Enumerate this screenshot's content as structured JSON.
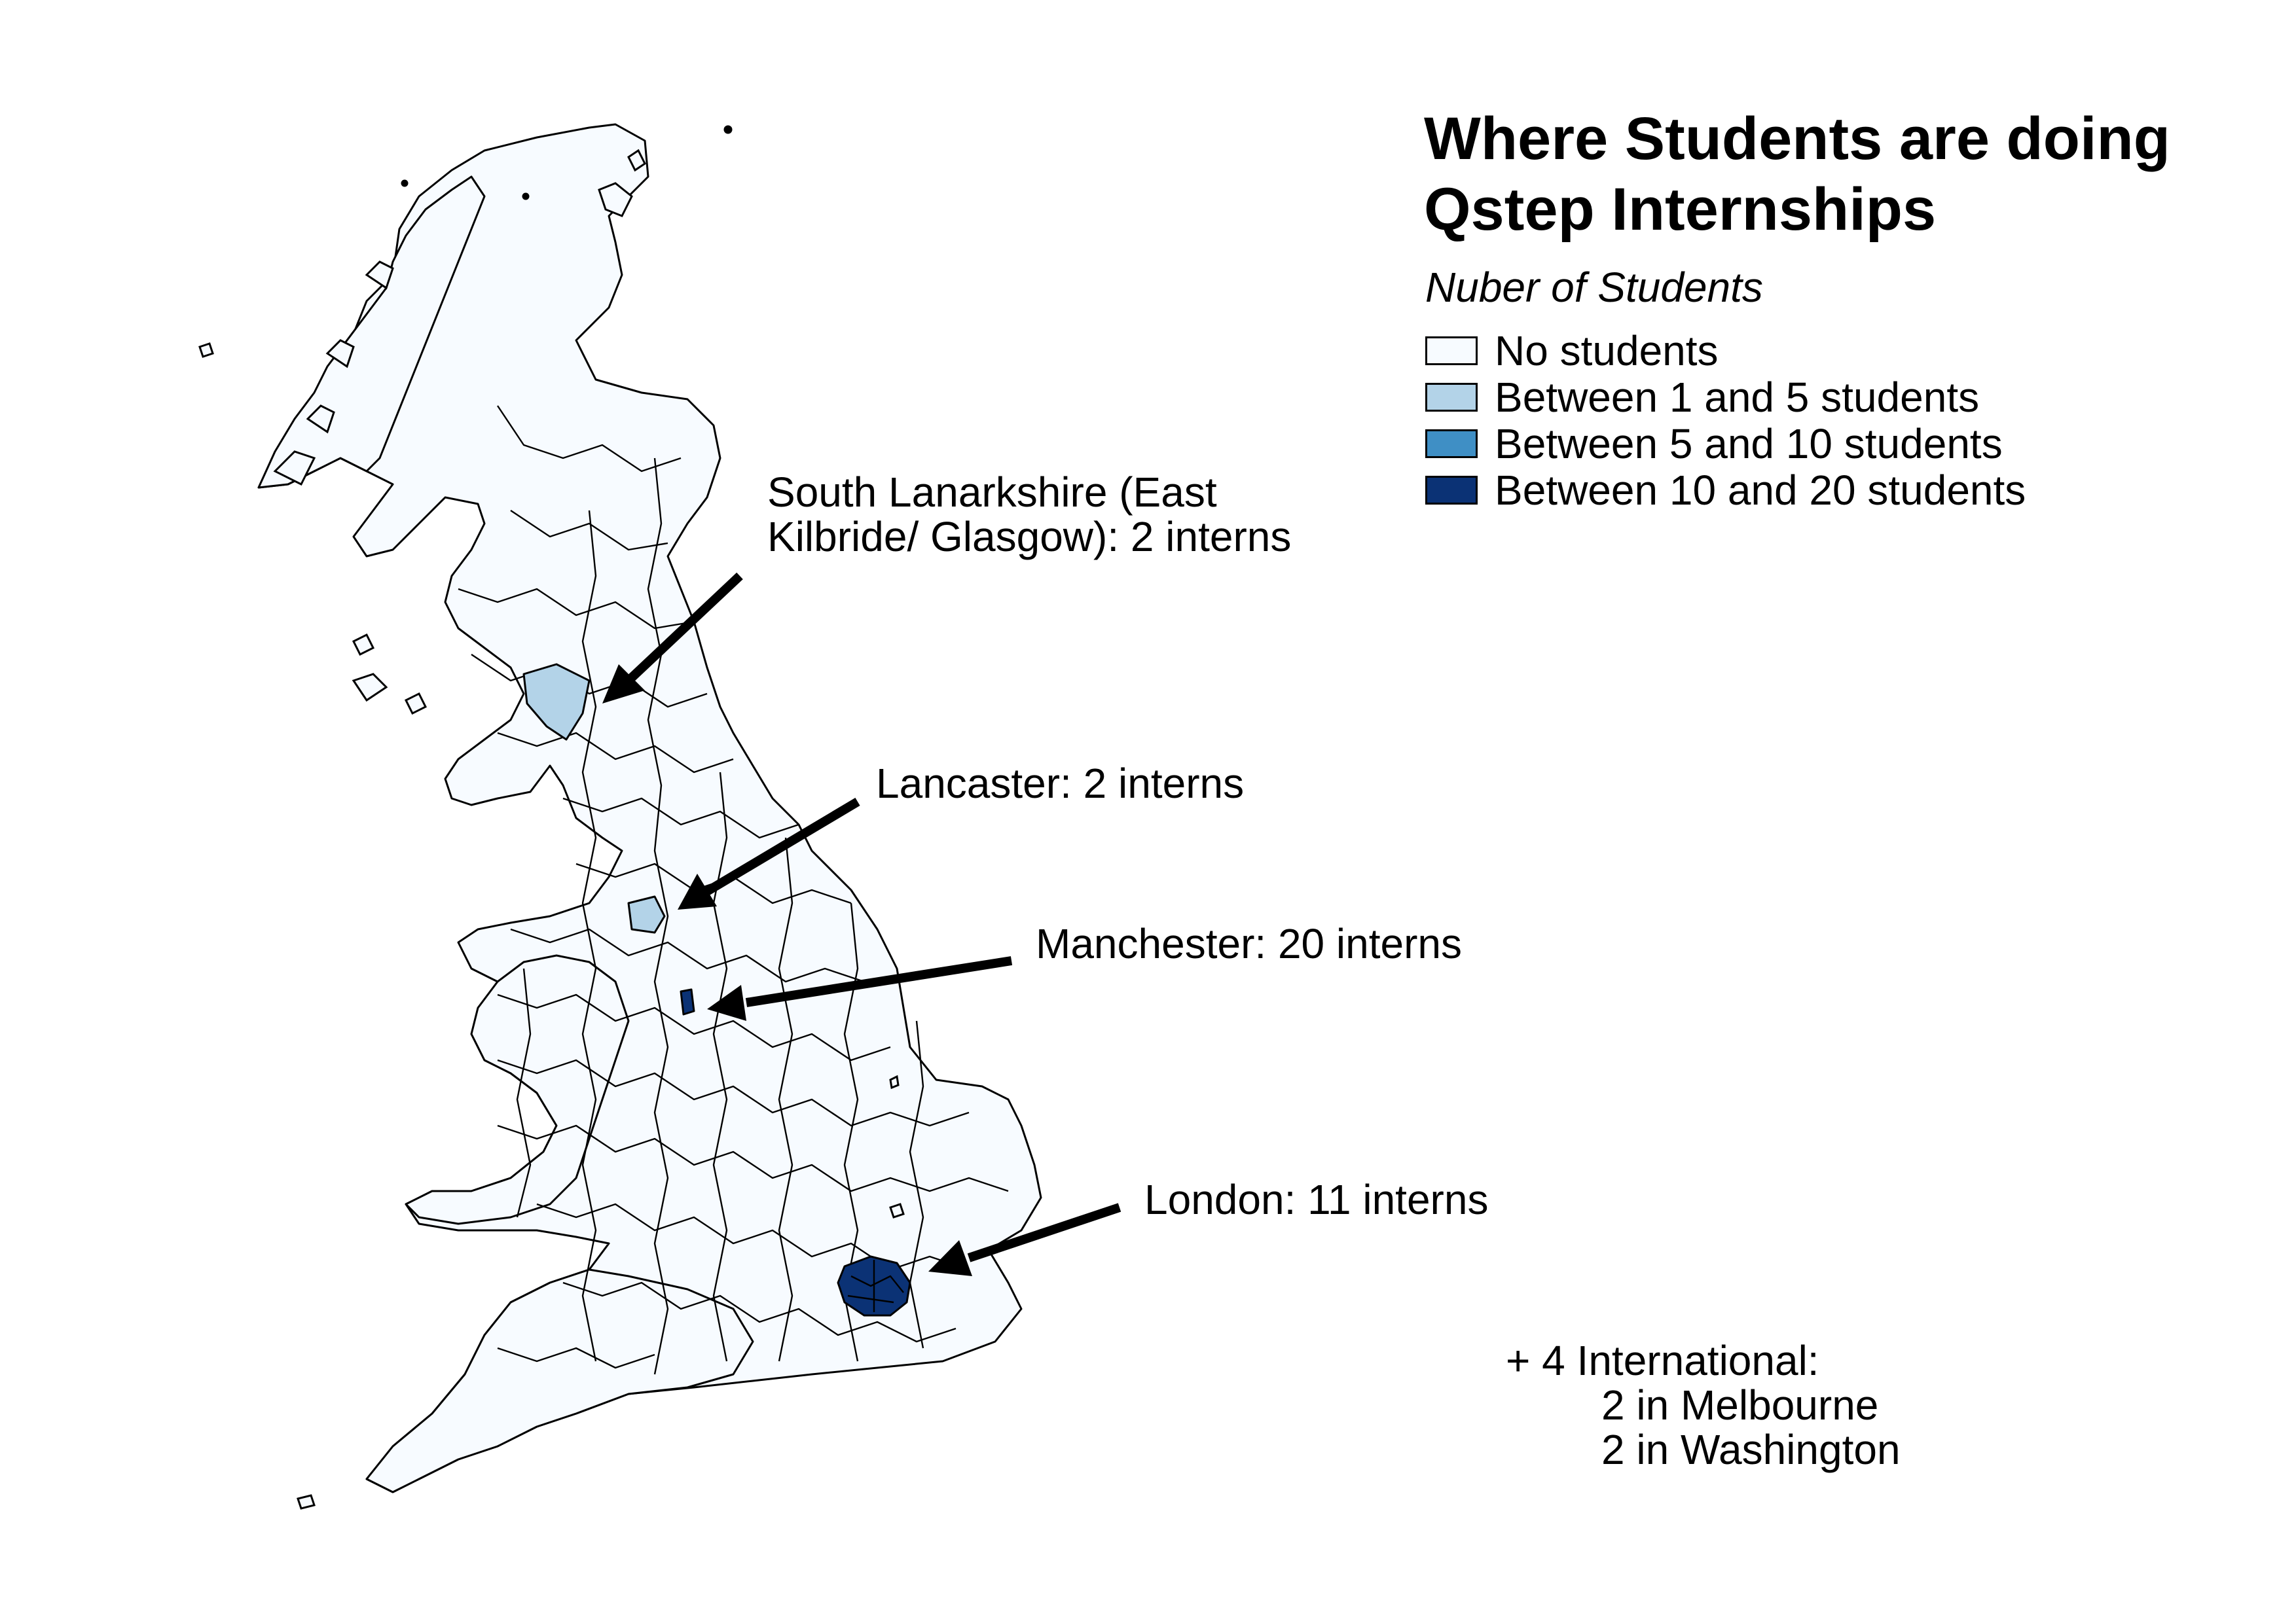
{
  "title_line1": "Where Students are doing",
  "title_line2": "Qstep Internships",
  "legend": {
    "title": "Nuber of Students",
    "items": [
      {
        "label": "No students",
        "color": "#f7fbff"
      },
      {
        "label": "Between 1 and 5 students",
        "color": "#b3d3e8"
      },
      {
        "label": "Between 5 and 10 students",
        "color": "#3f8fc5"
      },
      {
        "label": "Between 10 and 20 students",
        "color": "#0b3275"
      }
    ]
  },
  "callouts": {
    "south_lanarkshire_line1": "South Lanarkshire (East",
    "south_lanarkshire_line2": "Kilbride/ Glasgow): 2 interns",
    "lancaster": "Lancaster: 2 interns",
    "manchester": "Manchester: 20 interns",
    "london": "London: 11 interns"
  },
  "international": {
    "line1": "+ 4 International:",
    "line2": "2 in Melbourne",
    "line3": "2 in Washington"
  },
  "highlighted_areas": [
    {
      "name": "South Lanarkshire",
      "interns": 2,
      "category": "Between 1 and 5 students"
    },
    {
      "name": "Lancaster",
      "interns": 2,
      "category": "Between 1 and 5 students"
    },
    {
      "name": "Manchester",
      "interns": 20,
      "category": "Between 10 and 20 students"
    },
    {
      "name": "London",
      "interns": 11,
      "category": "Between 10 and 20 students"
    }
  ]
}
